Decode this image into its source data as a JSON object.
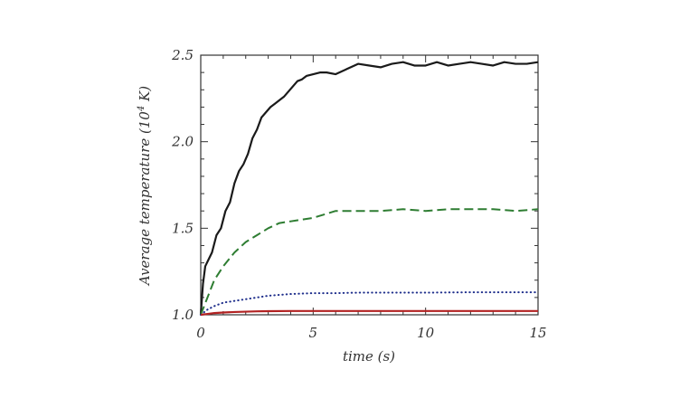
{
  "chart_data": {
    "type": "line",
    "xlabel": "time (s)",
    "ylabel_main": "Average temperature (10",
    "ylabel_sup": "4",
    "ylabel_end": " K)",
    "xlim": [
      0,
      15
    ],
    "ylim": [
      1.0,
      2.5
    ],
    "x_ticks": [
      0,
      5,
      10,
      15
    ],
    "x_tick_labels": [
      "0",
      "5",
      "10",
      "15"
    ],
    "y_ticks": [
      1.0,
      1.5,
      2.0,
      2.5
    ],
    "y_tick_labels": [
      "1.0",
      "1.5",
      "2.0",
      "2.5"
    ],
    "grid": false,
    "series": [
      {
        "style": "solid",
        "color": "#1a1a1a",
        "x": [
          0,
          0.1,
          0.2,
          0.35,
          0.5,
          0.7,
          0.9,
          1.1,
          1.3,
          1.5,
          1.7,
          1.9,
          2.1,
          2.3,
          2.5,
          2.7,
          2.9,
          3.1,
          3.3,
          3.5,
          3.7,
          3.9,
          4.1,
          4.3,
          4.5,
          4.7,
          5.0,
          5.3,
          5.6,
          6.0,
          6.5,
          7.0,
          7.5,
          8.0,
          8.5,
          9.0,
          9.5,
          10.0,
          10.5,
          11.0,
          11.5,
          12.0,
          12.5,
          13.0,
          13.5,
          14.0,
          14.5,
          15.0
        ],
        "y": [
          1.0,
          1.18,
          1.28,
          1.32,
          1.36,
          1.46,
          1.5,
          1.6,
          1.65,
          1.76,
          1.83,
          1.87,
          1.93,
          2.02,
          2.07,
          2.14,
          2.17,
          2.2,
          2.22,
          2.24,
          2.26,
          2.29,
          2.32,
          2.35,
          2.36,
          2.38,
          2.39,
          2.4,
          2.4,
          2.39,
          2.42,
          2.45,
          2.44,
          2.43,
          2.45,
          2.46,
          2.44,
          2.44,
          2.46,
          2.44,
          2.45,
          2.46,
          2.45,
          2.44,
          2.46,
          2.45,
          2.45,
          2.46
        ]
      },
      {
        "style": "dashed",
        "color": "#2e7d32",
        "x": [
          0,
          0.3,
          0.6,
          1.0,
          1.5,
          2.0,
          2.5,
          3.0,
          3.5,
          4.0,
          4.5,
          5.0,
          5.5,
          6.0,
          7.0,
          8.0,
          9.0,
          10.0,
          11.0,
          12.0,
          13.0,
          14.0,
          15.0
        ],
        "y": [
          1.0,
          1.1,
          1.2,
          1.28,
          1.36,
          1.42,
          1.46,
          1.5,
          1.53,
          1.54,
          1.55,
          1.56,
          1.58,
          1.6,
          1.6,
          1.6,
          1.61,
          1.6,
          1.61,
          1.61,
          1.61,
          1.6,
          1.61
        ]
      },
      {
        "style": "dotted",
        "color": "#1f2f8c",
        "x": [
          0,
          0.3,
          0.6,
          1.0,
          1.5,
          2.0,
          2.5,
          3.0,
          3.5,
          4.0,
          5.0,
          6.0,
          7.0,
          8.0,
          10.0,
          12.0,
          15.0
        ],
        "y": [
          1.0,
          1.03,
          1.05,
          1.07,
          1.08,
          1.09,
          1.1,
          1.11,
          1.115,
          1.12,
          1.125,
          1.125,
          1.128,
          1.128,
          1.128,
          1.13,
          1.13
        ]
      },
      {
        "style": "solid",
        "color": "#b22222",
        "x": [
          0,
          0.3,
          0.6,
          1.0,
          1.5,
          2.0,
          2.5,
          3.0,
          4.0,
          5.0,
          7.0,
          10.0,
          15.0
        ],
        "y": [
          1.0,
          1.005,
          1.01,
          1.013,
          1.016,
          1.018,
          1.02,
          1.021,
          1.022,
          1.022,
          1.022,
          1.022,
          1.022
        ]
      }
    ]
  }
}
